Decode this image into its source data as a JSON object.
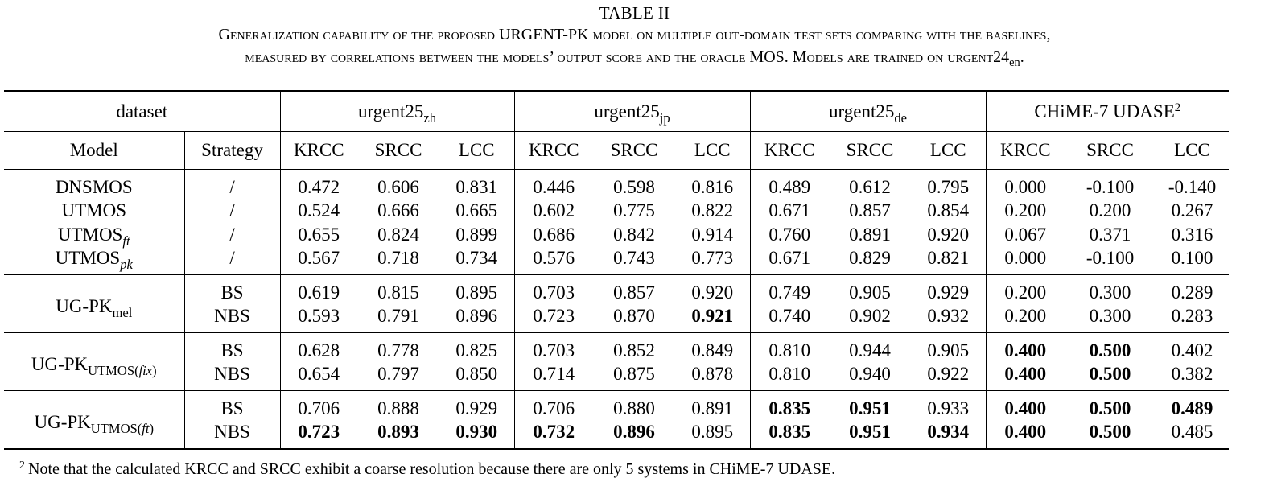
{
  "caption": {
    "label": "TABLE II",
    "line1": "Generalization capability of the proposed URGENT-PK model on multiple out-domain test sets comparing with the baselines,",
    "line2_prefix": "measured by correlations between the models’ output score and the oracle ",
    "line2_mos": "MOS",
    "line2_mid": ". Models are trained on urgent24",
    "line2_sub": "en",
    "line2_end": "."
  },
  "header": {
    "dataset": "dataset",
    "model": "Model",
    "strategy": "Strategy",
    "datasets": [
      {
        "base": "urgent25",
        "sub": "zh",
        "sup": ""
      },
      {
        "base": "urgent25",
        "sub": "jp",
        "sup": ""
      },
      {
        "base": "urgent25",
        "sub": "de",
        "sup": ""
      },
      {
        "base": "CHiME-7 UDASE",
        "sub": "",
        "sup": "2"
      }
    ],
    "metrics": [
      "KRCC",
      "SRCC",
      "LCC"
    ]
  },
  "groups": [
    {
      "rows": [
        {
          "model_base": "DNSMOS",
          "model_sub": "",
          "strategy": "/",
          "values": [
            "0.472",
            "0.606",
            "0.831",
            "0.446",
            "0.598",
            "0.816",
            "0.489",
            "0.612",
            "0.795",
            "0.000",
            "-0.100",
            "-0.140"
          ],
          "bold": []
        },
        {
          "model_base": "UTMOS",
          "model_sub": "",
          "strategy": "/",
          "values": [
            "0.524",
            "0.666",
            "0.665",
            "0.602",
            "0.775",
            "0.822",
            "0.671",
            "0.857",
            "0.854",
            "0.200",
            "0.200",
            "0.267"
          ],
          "bold": []
        },
        {
          "model_base": "UTMOS",
          "model_sub": "ft",
          "strategy": "/",
          "values": [
            "0.655",
            "0.824",
            "0.899",
            "0.686",
            "0.842",
            "0.914",
            "0.760",
            "0.891",
            "0.920",
            "0.067",
            "0.371",
            "0.316"
          ],
          "bold": []
        },
        {
          "model_base": "UTMOS",
          "model_sub": "pk",
          "strategy": "/",
          "values": [
            "0.567",
            "0.718",
            "0.734",
            "0.576",
            "0.743",
            "0.773",
            "0.671",
            "0.829",
            "0.821",
            "0.000",
            "-0.100",
            "0.100"
          ],
          "bold": []
        }
      ]
    },
    {
      "model_base": "UG-PK",
      "model_sub": "mel",
      "model_sub_paren": "",
      "rows": [
        {
          "strategy": "BS",
          "values": [
            "0.619",
            "0.815",
            "0.895",
            "0.703",
            "0.857",
            "0.920",
            "0.749",
            "0.905",
            "0.929",
            "0.200",
            "0.300",
            "0.289"
          ],
          "bold": []
        },
        {
          "strategy": "NBS",
          "values": [
            "0.593",
            "0.791",
            "0.896",
            "0.723",
            "0.870",
            "0.921",
            "0.740",
            "0.902",
            "0.932",
            "0.200",
            "0.300",
            "0.283"
          ],
          "bold": [
            5
          ]
        }
      ]
    },
    {
      "model_base": "UG-PK",
      "model_sub": "UTMOS",
      "model_sub_paren": "fix",
      "rows": [
        {
          "strategy": "BS",
          "values": [
            "0.628",
            "0.778",
            "0.825",
            "0.703",
            "0.852",
            "0.849",
            "0.810",
            "0.944",
            "0.905",
            "0.400",
            "0.500",
            "0.402"
          ],
          "bold": [
            9,
            10
          ]
        },
        {
          "strategy": "NBS",
          "values": [
            "0.654",
            "0.797",
            "0.850",
            "0.714",
            "0.875",
            "0.878",
            "0.810",
            "0.940",
            "0.922",
            "0.400",
            "0.500",
            "0.382"
          ],
          "bold": [
            9,
            10
          ]
        }
      ]
    },
    {
      "model_base": "UG-PK",
      "model_sub": "UTMOS",
      "model_sub_paren": "ft",
      "rows": [
        {
          "strategy": "BS",
          "values": [
            "0.706",
            "0.888",
            "0.929",
            "0.706",
            "0.880",
            "0.891",
            "0.835",
            "0.951",
            "0.933",
            "0.400",
            "0.500",
            "0.489"
          ],
          "bold": [
            6,
            7,
            9,
            10,
            11
          ]
        },
        {
          "strategy": "NBS",
          "values": [
            "0.723",
            "0.893",
            "0.930",
            "0.732",
            "0.896",
            "0.895",
            "0.835",
            "0.951",
            "0.934",
            "0.400",
            "0.500",
            "0.485"
          ],
          "bold": [
            0,
            1,
            2,
            3,
            4,
            6,
            7,
            8,
            9,
            10
          ]
        }
      ]
    }
  ],
  "footnote": {
    "mark": "2",
    "text": "Note that the calculated KRCC and SRCC exhibit a coarse resolution because there are only 5 systems in CHiME-7 UDASE."
  }
}
